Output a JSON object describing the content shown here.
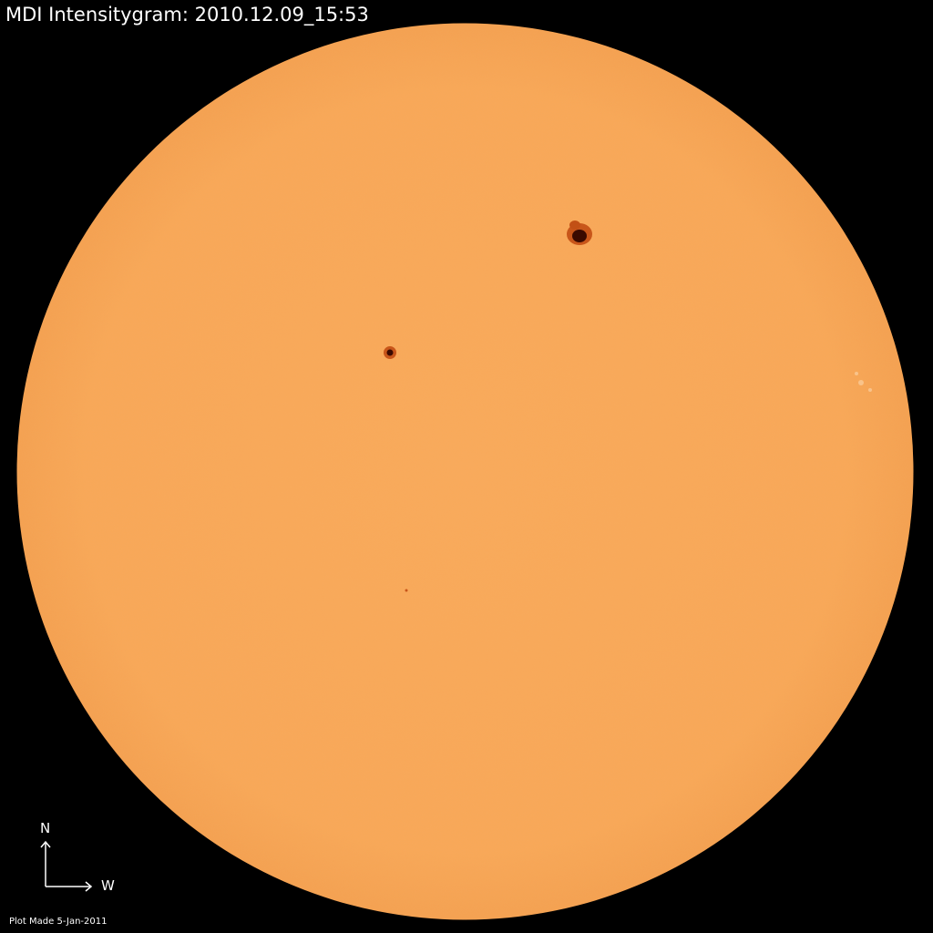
{
  "title": "MDI Intensitygram:  2010.12.09_15:53",
  "compass": {
    "north_label": "N",
    "west_label": "W"
  },
  "footer": "Plot Made  5-Jan-2011",
  "colors": {
    "background": "#000000",
    "photosphere": "#f9a757",
    "sunspot_umbra": "#3a0a00",
    "sunspot_penumbra": "#b84a10"
  },
  "features": [
    {
      "name": "sunspot-large",
      "description": "large sunspot, upper right"
    },
    {
      "name": "sunspot-small",
      "description": "small sunspot, upper left"
    }
  ]
}
